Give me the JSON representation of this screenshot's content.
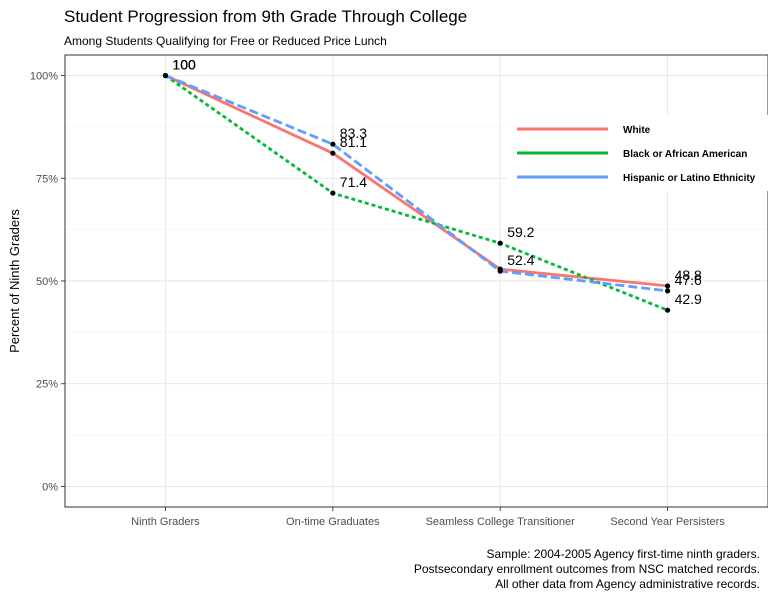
{
  "header": {
    "title": "Student Progression from 9th Grade Through College",
    "subtitle": "Among Students Qualifying for Free or Reduced Price Lunch"
  },
  "caption": {
    "lines": [
      "Sample: 2004-2005 Agency first-time ninth graders.",
      "Postsecondary enrollment outcomes from NSC matched records.",
      "All other data from Agency administrative records."
    ]
  },
  "chart_data": {
    "type": "line",
    "title": "Student Progression from 9th Grade Through College",
    "subtitle": "Among Students Qualifying for Free or Reduced Price Lunch",
    "xlabel": "",
    "ylabel": "Percent of Ninth Graders",
    "categories": [
      "Ninth Graders",
      "On-time Graduates",
      "Seamless College Transitioner",
      "Second Year Persisters"
    ],
    "ylim": [
      -5,
      105
    ],
    "yticks": [
      0,
      25,
      50,
      75,
      100
    ],
    "ytick_labels": [
      "0%",
      "25%",
      "50%",
      "75%",
      "100%"
    ],
    "grid": true,
    "legend_position": "top-right",
    "series": [
      {
        "name": "White",
        "values": [
          100,
          81.1,
          52.9,
          48.8
        ],
        "labels": [
          "100",
          "81.1",
          "",
          "48.8"
        ],
        "color": "#F8766D",
        "dash": "solid"
      },
      {
        "name": "Black or African American",
        "values": [
          100,
          71.4,
          59.2,
          42.9
        ],
        "labels": [
          "100",
          "71.4",
          "59.2",
          "42.9"
        ],
        "color": "#00BA38",
        "dash": "dotted"
      },
      {
        "name": "Hispanic or Latino Ethnicity",
        "values": [
          100,
          83.3,
          52.4,
          47.6
        ],
        "labels": [
          "100",
          "83.3",
          "52.4",
          "47.6"
        ],
        "color": "#619CFF",
        "dash": "dashed"
      }
    ]
  }
}
